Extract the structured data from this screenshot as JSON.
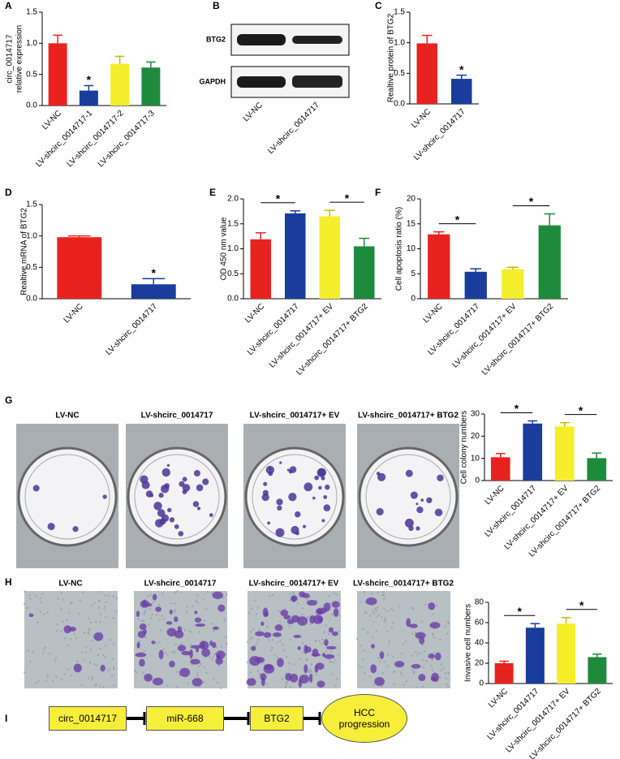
{
  "chart_data": [
    {
      "type": "bar",
      "panel": "A",
      "ylabel": [
        "circ_0014717",
        "relative expression"
      ],
      "categories": [
        "LV-NC",
        "LV-shcirc_0014717-1",
        "LV-shcirc_0014717-2",
        "LV-shcirc_0014717-3"
      ],
      "values": [
        1.0,
        0.24,
        0.67,
        0.61
      ],
      "errors": [
        0.13,
        0.08,
        0.12,
        0.09
      ],
      "colors": [
        "#e8231f",
        "#1a3c9c",
        "#f5ee2b",
        "#1e8a3c"
      ],
      "ylim": [
        0,
        1.5
      ],
      "yticks": [
        {
          "value": 0,
          "label": "0.0"
        },
        {
          "value": 0.5,
          "label": "0.5"
        },
        {
          "value": 1.0,
          "label": "1.0"
        },
        {
          "value": 1.5,
          "label": "1.5"
        }
      ],
      "annotations": [
        "*"
      ],
      "significance_brackets": false
    },
    {
      "type": "bar",
      "panel": "C",
      "ylabel": "Realtive protein of  BTG2",
      "categories": [
        "LV-NC",
        "LV-shcirc_0014717"
      ],
      "values": [
        0.99,
        0.41
      ],
      "errors": [
        0.13,
        0.06
      ],
      "colors": [
        "#e8231f",
        "#1a3c9c"
      ],
      "ylim": [
        0,
        1.5
      ],
      "yticks": [
        {
          "value": 0,
          "label": "0.0"
        },
        {
          "value": 0.5,
          "label": "0.5"
        },
        {
          "value": 1.0,
          "label": "1.0"
        },
        {
          "value": 1.5,
          "label": "1.5"
        }
      ],
      "annotations": [
        "*"
      ],
      "significance_brackets": false
    },
    {
      "type": "bar",
      "panel": "D",
      "ylabel": "Realtive mRNA  of  BTG2",
      "categories": [
        "LV-NC",
        "LV-shcirc_0014717"
      ],
      "values": [
        0.98,
        0.23
      ],
      "errors": [
        0.02,
        0.09
      ],
      "colors": [
        "#e8231f",
        "#1a3c9c"
      ],
      "ylim": [
        0,
        1.5
      ],
      "yticks": [
        {
          "value": 0,
          "label": "0.0"
        },
        {
          "value": 0.5,
          "label": "0.5"
        },
        {
          "value": 1.0,
          "label": "1.0"
        },
        {
          "value": 1.5,
          "label": "1.5"
        }
      ],
      "annotations": [
        "*"
      ],
      "significance_brackets": false
    },
    {
      "type": "bar",
      "panel": "E",
      "ylabel": "OD 450 nm value",
      "categories": [
        "LV-NC",
        "LV-shcirc_0014717",
        "LV-shcirc_0014717+ EV",
        "LV-shcirc_0014717+ BTG2"
      ],
      "values": [
        1.19,
        1.71,
        1.65,
        1.05
      ],
      "errors": [
        0.13,
        0.05,
        0.12,
        0.16
      ],
      "colors": [
        "#e8231f",
        "#1a3c9c",
        "#f5ee2b",
        "#1e8a3c"
      ],
      "ylim": [
        0,
        2.0
      ],
      "yticks": [
        {
          "value": 0,
          "label": "0.0"
        },
        {
          "value": 0.5,
          "label": "0.5"
        },
        {
          "value": 1.0,
          "label": "1.0"
        },
        {
          "value": 1.5,
          "label": "1.5"
        },
        {
          "value": 2.0,
          "label": "2.0"
        }
      ],
      "annotations": [
        "*",
        "*"
      ],
      "significance_brackets": true
    },
    {
      "type": "bar",
      "panel": "F",
      "ylabel": "Cell apoptosis ratio (%)",
      "categories": [
        "LV-NC",
        "LV-shcirc_0014717",
        "LV-shcirc_0014717+ EV",
        "LV-shcirc_0014717+ BTG2"
      ],
      "values": [
        12.9,
        5.4,
        5.9,
        14.7
      ],
      "errors": [
        0.5,
        0.6,
        0.4,
        2.3
      ],
      "colors": [
        "#e8231f",
        "#1a3c9c",
        "#f5ee2b",
        "#1e8a3c"
      ],
      "ylim": [
        0,
        20
      ],
      "yticks": [
        0,
        5,
        10,
        15,
        20
      ],
      "annotations": [
        "*",
        "*"
      ],
      "significance_brackets": true
    },
    {
      "type": "bar",
      "panel": "G",
      "ylabel": "Cell colony numbers",
      "categories": [
        "LV-NC",
        "LV-shcirc_0014717",
        "LV-shcirc_0014717+ EV",
        "LV-shcirc_0014717+ BTG2"
      ],
      "values": [
        10.5,
        25.7,
        24.4,
        10.1
      ],
      "errors": [
        1.7,
        1.2,
        1.7,
        2.3
      ],
      "colors": [
        "#e8231f",
        "#1a3c9c",
        "#f5ee2b",
        "#1e8a3c"
      ],
      "ylim": [
        0,
        30
      ],
      "yticks": [
        0,
        10,
        20,
        30
      ],
      "annotations": [
        "*",
        "*"
      ],
      "significance_brackets": true
    },
    {
      "type": "bar",
      "panel": "H",
      "ylabel": "Invasive cell numbers",
      "categories": [
        "LV-NC",
        "LV-shcirc_0014717",
        "LV-shcirc_0014717+ EV",
        "LV-shcirc_0014717+ BTG2"
      ],
      "values": [
        20,
        55,
        59,
        26
      ],
      "errors": [
        2,
        4,
        6,
        3
      ],
      "colors": [
        "#e8231f",
        "#1a3c9c",
        "#f5ee2b",
        "#1e8a3c"
      ],
      "ylim": [
        0,
        80
      ],
      "yticks": [
        0,
        20,
        40,
        60,
        80
      ],
      "annotations": [
        "*",
        "*"
      ],
      "significance_brackets": true
    }
  ],
  "blot": {
    "panel": "B",
    "bands": [
      "BTG2",
      "GAPDH"
    ],
    "categories": [
      "LV-NC",
      "LV-shcirc_0014717"
    ]
  },
  "colony_photos": {
    "panel": "G",
    "captions": [
      "LV-NC",
      "LV-shcirc_0014717",
      "LV-shcirc_0014717+ EV",
      "LV-shcirc_0014717+ BTG2"
    ]
  },
  "invasion_photos": {
    "panel": "H",
    "captions": [
      "LV-NC",
      "LV-shcirc_0014717",
      "LV-shcirc_0014717+ EV",
      "LV-shcirc_0014717+ BTG2"
    ]
  },
  "diagram": {
    "panel": "I",
    "nodes": [
      "circ_0014717",
      "miR-668",
      "BTG2",
      "HCC progression"
    ]
  }
}
